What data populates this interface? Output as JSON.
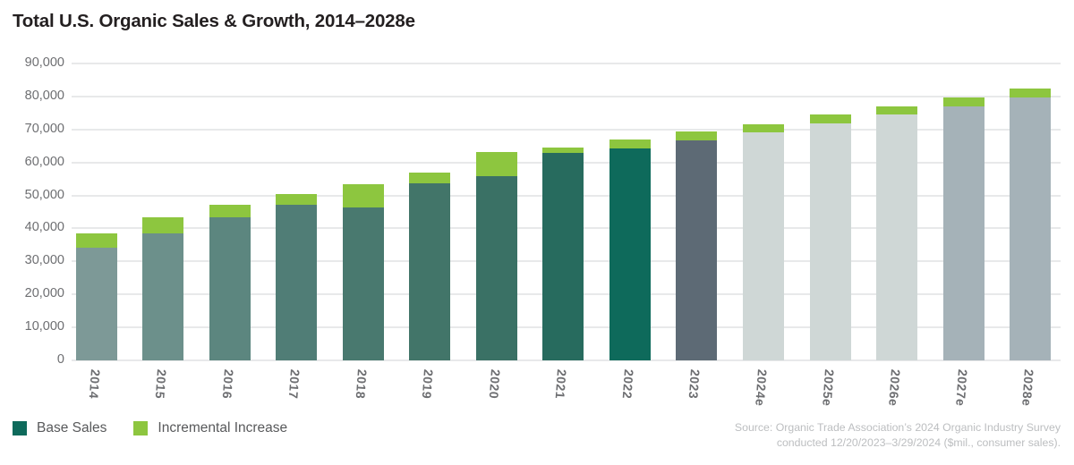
{
  "title": "Total U.S. Organic Sales & Growth, 2014–2028e",
  "legend": [
    {
      "label": "Base Sales",
      "color": "#0E6A5B"
    },
    {
      "label": "Incremental Increase",
      "color": "#8DC63F"
    }
  ],
  "source": {
    "line1": "Source: Organic Trade Association’s 2024 Organic Industry Survey",
    "line2": "conducted 12/20/2023–3/29/2024 ($mil., consumer sales)."
  },
  "chart_data": {
    "type": "bar",
    "stacked": true,
    "title": "Total U.S. Organic Sales & Growth, 2014–2028e",
    "units": "$mil., consumer sales",
    "categories": [
      "2014",
      "2015",
      "2016",
      "2017",
      "2018",
      "2019",
      "2020",
      "2021",
      "2022",
      "2023",
      "2024e",
      "2025e",
      "2026e",
      "2027e",
      "2028e"
    ],
    "series": [
      {
        "name": "Base Sales",
        "values": [
          34200,
          38500,
          43200,
          47100,
          46400,
          53500,
          56000,
          62900,
          64200,
          66700,
          69100,
          71800,
          74500,
          77000,
          79700
        ]
      },
      {
        "name": "Incremental Increase",
        "values": [
          4300,
          4900,
          3900,
          3300,
          7100,
          3300,
          7200,
          1600,
          2800,
          2700,
          2500,
          2700,
          2500,
          2700,
          2700
        ]
      }
    ],
    "totals": [
      38500,
      43400,
      47100,
      50400,
      53500,
      56800,
      63200,
      64500,
      67000,
      69400,
      71600,
      74500,
      77000,
      79700,
      82400
    ],
    "bar_colors": [
      "#7D9997",
      "#6C908B",
      "#5C867F",
      "#507D76",
      "#49796F",
      "#427569",
      "#3A7165",
      "#276B5E",
      "#0E6A5B",
      "#5D6A75",
      "#CFD7D6",
      "#CFD7D6",
      "#CFD7D6",
      "#A5B2B8",
      "#A5B2B8"
    ],
    "increment_color": "#8DC63F",
    "xlabel": "",
    "ylabel": "",
    "ylim": [
      0,
      90000
    ],
    "ytick_interval": 10000,
    "ytick_labels": [
      "90,000",
      "80,000",
      "70,000",
      "60,000",
      "50,000",
      "40,000",
      "30,000",
      "20,000",
      "10,000",
      "0"
    ],
    "grid": true,
    "legend_position": "bottom-left"
  },
  "colors": {
    "title_text": "#231F20",
    "axis_text": "#6D6E71",
    "legend_text": "#58595B",
    "source_text": "#BCBEC0",
    "gridline": "#E8E9EA",
    "background": "#FFFFFF"
  }
}
